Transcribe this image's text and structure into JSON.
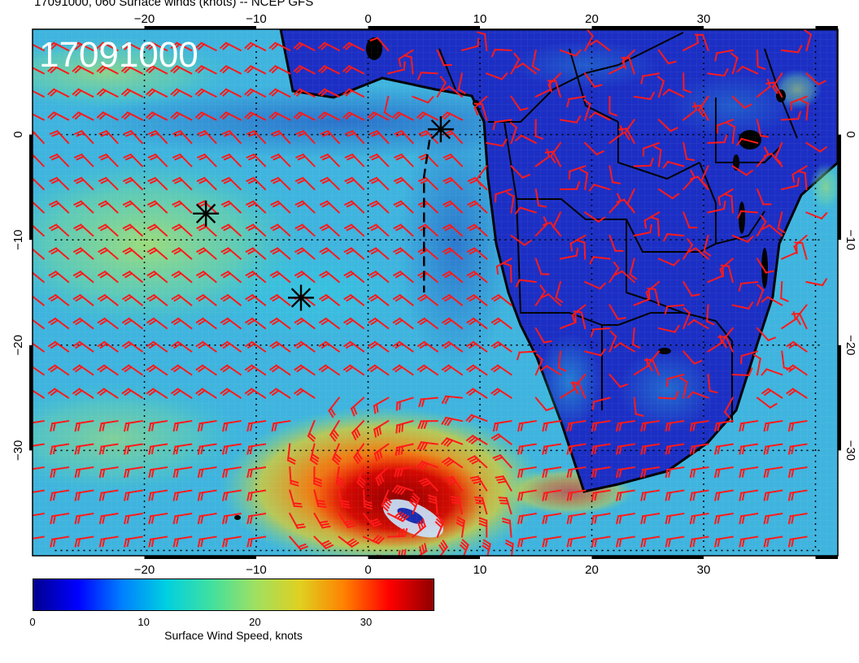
{
  "title": "17091000, 060 Surface winds (knots) -- NCEP GFS",
  "map": {
    "stamp": "17091000",
    "lon_range": [
      -30,
      42
    ],
    "lat_range": [
      -40,
      10
    ],
    "lon_ticks": [
      {
        "value": -20,
        "label": "−20"
      },
      {
        "value": -10,
        "label": "−10"
      },
      {
        "value": 0,
        "label": "0"
      },
      {
        "value": 10,
        "label": "10"
      },
      {
        "value": 20,
        "label": "20"
      },
      {
        "value": 30,
        "label": "30"
      }
    ],
    "lat_ticks": [
      {
        "value": 0,
        "label": "0"
      },
      {
        "value": -10,
        "label": "−10"
      },
      {
        "value": -20,
        "label": "−20"
      },
      {
        "value": -30,
        "label": "−30"
      }
    ],
    "markers": [
      {
        "type": "asterisk",
        "lon": -14.5,
        "lat": -7.5
      },
      {
        "type": "asterisk",
        "lon": -6.0,
        "lat": -15.5
      },
      {
        "type": "asterisk",
        "lon": 6.5,
        "lat": 0.5
      }
    ],
    "dashed_track": [
      [
        5.5,
        -0.5
      ],
      [
        5.0,
        -4.0
      ],
      [
        5.0,
        -15.0
      ]
    ],
    "colors": {
      "barb": "#ff1a1a",
      "land_base": "#1c2fc4",
      "ocean_base": "#35b4dc",
      "coast": "#000000"
    }
  },
  "colorbar": {
    "min": 0,
    "max": 36,
    "ticks": [
      {
        "value": 0,
        "label": "0"
      },
      {
        "value": 10,
        "label": "10"
      },
      {
        "value": 20,
        "label": "20"
      },
      {
        "value": 30,
        "label": "30"
      }
    ],
    "label": "Surface Wind Speed, knots",
    "stops": [
      "#00008f",
      "#0000ff",
      "#0080ff",
      "#00d0e0",
      "#40e0a0",
      "#a0e060",
      "#e0d020",
      "#ff8000",
      "#ff0000",
      "#900000"
    ]
  }
}
